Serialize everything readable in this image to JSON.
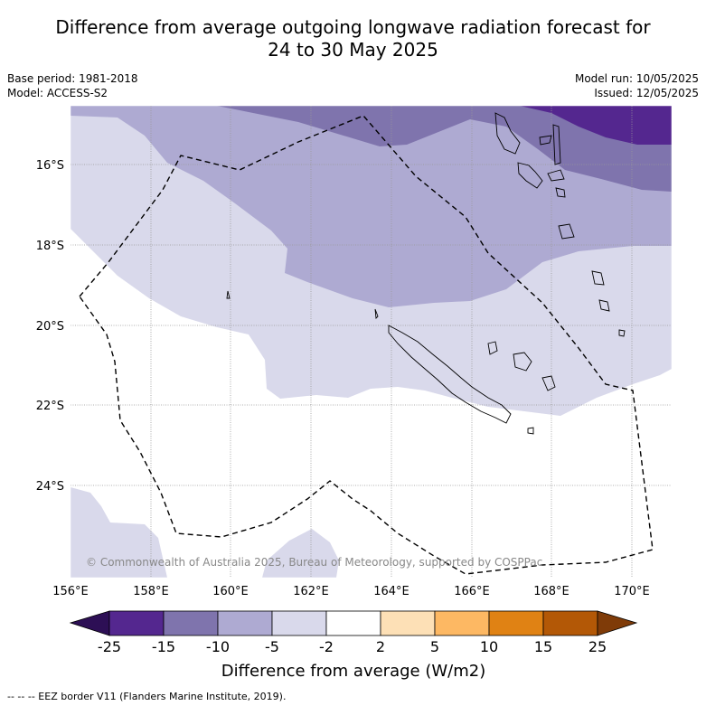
{
  "title": {
    "line1": "Difference from average outgoing longwave radiation forecast for",
    "line2": "24 to 30 May 2025"
  },
  "info": {
    "base_period": "Base period: 1981-2018",
    "model": "Model: ACCESS-S2",
    "model_run": "Model run: 10/05/2025",
    "issued": "Issued: 12/05/2025"
  },
  "map": {
    "lon_labels": [
      "156°E",
      "158°E",
      "160°E",
      "162°E",
      "164°E",
      "166°E",
      "168°E",
      "170°E"
    ],
    "lat_labels": [
      "16°S",
      "18°S",
      "20°S",
      "22°S",
      "24°S"
    ],
    "copyright": "© Commonwealth of Australia 2025, Bureau of Meteorology, supported by COSPPac"
  },
  "colorbar": {
    "tick_labels": [
      "-25",
      "-15",
      "-10",
      "-5",
      "-2",
      "2",
      "5",
      "10",
      "15",
      "25"
    ],
    "colors": [
      "#2d0f55",
      "#54278f",
      "#7f74ad",
      "#aeaad2",
      "#d9d9eb",
      "#ffffff",
      "#fde0b6",
      "#fdb863",
      "#e08214",
      "#b35806",
      "#7f3b08"
    ],
    "label": "Difference from average (W/m2)"
  },
  "footnote": "--  --  -- EEZ border V11 (Flanders Marine Institute, 2019)."
}
